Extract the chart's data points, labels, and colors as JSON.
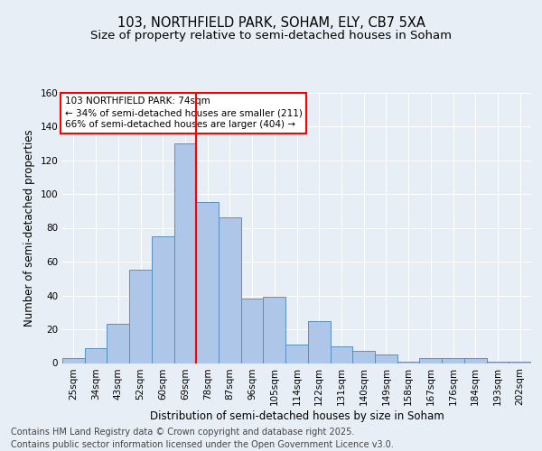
{
  "title1": "103, NORTHFIELD PARK, SOHAM, ELY, CB7 5XA",
  "title2": "Size of property relative to semi-detached houses in Soham",
  "xlabel": "Distribution of semi-detached houses by size in Soham",
  "ylabel": "Number of semi-detached properties",
  "categories": [
    "25sqm",
    "34sqm",
    "43sqm",
    "52sqm",
    "60sqm",
    "69sqm",
    "78sqm",
    "87sqm",
    "96sqm",
    "105sqm",
    "114sqm",
    "122sqm",
    "131sqm",
    "140sqm",
    "149sqm",
    "158sqm",
    "167sqm",
    "176sqm",
    "184sqm",
    "193sqm",
    "202sqm"
  ],
  "values": [
    3,
    9,
    23,
    55,
    75,
    130,
    95,
    86,
    38,
    39,
    11,
    25,
    10,
    7,
    5,
    1,
    3,
    3,
    3,
    1,
    1
  ],
  "bar_color": "#aec6e8",
  "bar_edge_color": "#5a8fc0",
  "vline_x_index": 6,
  "vline_color": "red",
  "annotation_text": "103 NORTHFIELD PARK: 74sqm\n← 34% of semi-detached houses are smaller (211)\n66% of semi-detached houses are larger (404) →",
  "annotation_box_color": "white",
  "annotation_box_edge_color": "red",
  "footer_text": "Contains HM Land Registry data © Crown copyright and database right 2025.\nContains public sector information licensed under the Open Government Licence v3.0.",
  "ylim": [
    0,
    160
  ],
  "yticks": [
    0,
    20,
    40,
    60,
    80,
    100,
    120,
    140,
    160
  ],
  "background_color": "#e8eef5",
  "plot_background": "#e8eef5",
  "title_fontsize": 10.5,
  "subtitle_fontsize": 9.5,
  "axis_label_fontsize": 8.5,
  "tick_fontsize": 7.5,
  "footer_fontsize": 7.0
}
